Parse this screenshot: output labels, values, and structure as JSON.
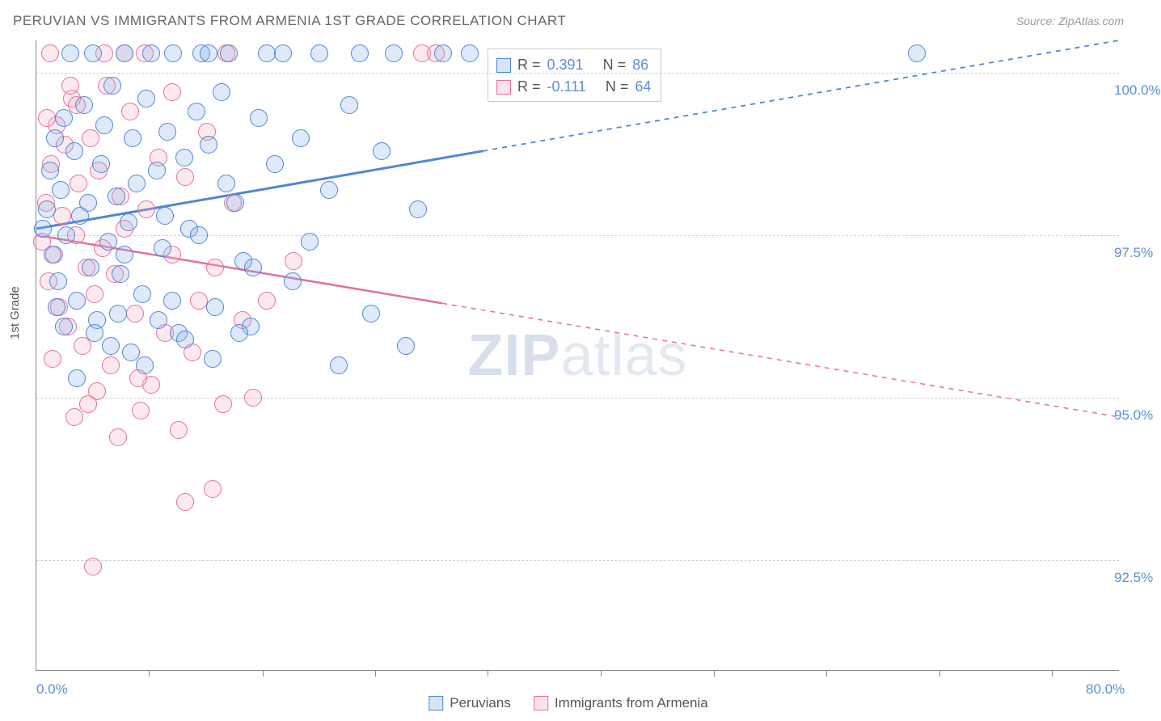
{
  "title": "PERUVIAN VS IMMIGRANTS FROM ARMENIA 1ST GRADE CORRELATION CHART",
  "source_prefix": "Source: ",
  "source": "ZipAtlas.com",
  "ylabel": "1st Grade",
  "watermark_bold": "ZIP",
  "watermark_light": "atlas",
  "chart": {
    "type": "scatter",
    "background_color": "#ffffff",
    "grid_color": "#d0d0d0",
    "axis_color": "#888888",
    "text_color": "#666666",
    "value_color": "#5b8fd6",
    "xlim": [
      0,
      80
    ],
    "ylim": [
      90.8,
      100.5
    ],
    "x_ticks_label": [
      {
        "v": 0,
        "t": "0.0%"
      },
      {
        "v": 80,
        "t": "80.0%"
      }
    ],
    "x_ticks_minor": [
      8.3,
      16.7,
      25,
      33.3,
      41.7,
      50,
      58.3,
      66.7,
      75
    ],
    "y_ticks": [
      {
        "v": 92.5,
        "t": "92.5%"
      },
      {
        "v": 95.0,
        "t": "95.0%"
      },
      {
        "v": 97.5,
        "t": "97.5%"
      },
      {
        "v": 100.0,
        "t": "100.0%"
      }
    ],
    "point_radius": 11,
    "point_stroke_width": 1.5,
    "point_fill_opacity": 0.28
  },
  "series": [
    {
      "key": "peruvians",
      "label": "Peruvians",
      "color_stroke": "#4f86d6",
      "color_fill": "#87b1e8",
      "stats": {
        "R_label": "R =",
        "R": "0.391",
        "N_label": "N =",
        "N": "86"
      },
      "trend": {
        "x1": 0,
        "y1": 97.6,
        "x2": 80,
        "y2": 100.5,
        "solid_until_x": 33,
        "width": 3
      },
      "points": [
        [
          0.5,
          97.6
        ],
        [
          0.8,
          97.9
        ],
        [
          1.0,
          98.5
        ],
        [
          1.2,
          97.2
        ],
        [
          1.4,
          99.0
        ],
        [
          1.6,
          96.8
        ],
        [
          1.8,
          98.2
        ],
        [
          2.0,
          99.3
        ],
        [
          2.2,
          97.5
        ],
        [
          2.5,
          100.3
        ],
        [
          2.8,
          98.8
        ],
        [
          3.0,
          96.5
        ],
        [
          3.2,
          97.8
        ],
        [
          3.5,
          99.5
        ],
        [
          3.8,
          98.0
        ],
        [
          4.0,
          97.0
        ],
        [
          4.2,
          100.3
        ],
        [
          4.5,
          96.2
        ],
        [
          4.8,
          98.6
        ],
        [
          5.0,
          99.2
        ],
        [
          5.3,
          97.4
        ],
        [
          5.6,
          99.8
        ],
        [
          5.9,
          98.1
        ],
        [
          6.2,
          96.9
        ],
        [
          6.5,
          100.3
        ],
        [
          6.8,
          97.7
        ],
        [
          7.1,
          99.0
        ],
        [
          7.4,
          98.3
        ],
        [
          7.8,
          96.6
        ],
        [
          8.1,
          99.6
        ],
        [
          8.5,
          100.3
        ],
        [
          8.9,
          98.5
        ],
        [
          9.3,
          97.3
        ],
        [
          9.7,
          99.1
        ],
        [
          10.1,
          100.3
        ],
        [
          10.5,
          96.0
        ],
        [
          10.9,
          98.7
        ],
        [
          11.3,
          97.6
        ],
        [
          11.8,
          99.4
        ],
        [
          12.2,
          100.3
        ],
        [
          12.7,
          98.9
        ],
        [
          12.7,
          100.3
        ],
        [
          13.2,
          96.4
        ],
        [
          13.7,
          99.7
        ],
        [
          14.2,
          100.3
        ],
        [
          14.7,
          98.0
        ],
        [
          15.3,
          97.1
        ],
        [
          15.8,
          96.1
        ],
        [
          16.4,
          99.3
        ],
        [
          17.0,
          100.3
        ],
        [
          17.6,
          98.6
        ],
        [
          18.2,
          100.3
        ],
        [
          18.9,
          96.8
        ],
        [
          19.5,
          99.0
        ],
        [
          20.2,
          97.4
        ],
        [
          20.9,
          100.3
        ],
        [
          21.6,
          98.2
        ],
        [
          22.3,
          95.5
        ],
        [
          23.1,
          99.5
        ],
        [
          23.9,
          100.3
        ],
        [
          24.7,
          96.3
        ],
        [
          25.5,
          98.8
        ],
        [
          26.4,
          100.3
        ],
        [
          27.3,
          95.8
        ],
        [
          28.2,
          97.9
        ],
        [
          30.0,
          100.3
        ],
        [
          32.0,
          100.3
        ],
        [
          65.0,
          100.3
        ],
        [
          3.0,
          95.3
        ],
        [
          5.5,
          95.8
        ],
        [
          8.0,
          95.5
        ],
        [
          4.3,
          96.0
        ],
        [
          6.0,
          96.3
        ],
        [
          9.0,
          96.2
        ],
        [
          11.0,
          95.9
        ],
        [
          2.0,
          96.1
        ],
        [
          7.0,
          95.7
        ],
        [
          10.0,
          96.5
        ],
        [
          13.0,
          95.6
        ],
        [
          15.0,
          96.0
        ],
        [
          1.5,
          96.4
        ],
        [
          6.5,
          97.2
        ],
        [
          9.5,
          97.8
        ],
        [
          12.0,
          97.5
        ],
        [
          14.0,
          98.3
        ],
        [
          16.0,
          97.0
        ]
      ]
    },
    {
      "key": "armenia",
      "label": "Immigrants from Armenia",
      "color_stroke": "#e66f9a",
      "color_fill": "#f5b0c7",
      "stats": {
        "R_label": "R =",
        "R": "-0.111",
        "N_label": "N =",
        "N": "64"
      },
      "trend": {
        "x1": 0,
        "y1": 97.5,
        "x2": 80,
        "y2": 94.7,
        "solid_until_x": 30,
        "width": 2.5
      },
      "points": [
        [
          0.4,
          97.4
        ],
        [
          0.7,
          98.0
        ],
        [
          0.9,
          96.8
        ],
        [
          1.1,
          98.6
        ],
        [
          1.3,
          97.2
        ],
        [
          1.5,
          99.2
        ],
        [
          1.7,
          96.4
        ],
        [
          1.9,
          97.8
        ],
        [
          2.1,
          98.9
        ],
        [
          2.3,
          96.1
        ],
        [
          2.6,
          99.6
        ],
        [
          2.9,
          97.5
        ],
        [
          3.1,
          98.3
        ],
        [
          3.4,
          95.8
        ],
        [
          3.7,
          97.0
        ],
        [
          4.0,
          99.0
        ],
        [
          4.3,
          96.6
        ],
        [
          4.6,
          98.5
        ],
        [
          4.9,
          97.3
        ],
        [
          5.2,
          99.8
        ],
        [
          5.5,
          95.5
        ],
        [
          5.8,
          96.9
        ],
        [
          6.2,
          98.1
        ],
        [
          6.5,
          97.6
        ],
        [
          6.9,
          99.4
        ],
        [
          7.3,
          96.3
        ],
        [
          7.7,
          94.8
        ],
        [
          8.1,
          97.9
        ],
        [
          8.5,
          95.2
        ],
        [
          9.0,
          98.7
        ],
        [
          9.5,
          96.0
        ],
        [
          10.0,
          97.2
        ],
        [
          10.5,
          94.5
        ],
        [
          11.0,
          98.4
        ],
        [
          11.5,
          95.7
        ],
        [
          12.0,
          96.5
        ],
        [
          12.6,
          99.1
        ],
        [
          13.2,
          97.0
        ],
        [
          13.8,
          94.9
        ],
        [
          14.5,
          98.0
        ],
        [
          15.2,
          96.2
        ],
        [
          16.0,
          95.0
        ],
        [
          3.0,
          99.5
        ],
        [
          5.0,
          100.3
        ],
        [
          1.0,
          100.3
        ],
        [
          2.5,
          99.8
        ],
        [
          0.8,
          99.3
        ],
        [
          1.2,
          95.6
        ],
        [
          2.8,
          94.7
        ],
        [
          4.5,
          95.1
        ],
        [
          6.0,
          94.4
        ],
        [
          7.5,
          95.3
        ],
        [
          3.8,
          94.9
        ],
        [
          4.2,
          92.4
        ],
        [
          11.0,
          93.4
        ],
        [
          13.0,
          93.6
        ],
        [
          19.0,
          97.1
        ],
        [
          17.0,
          96.5
        ],
        [
          8.0,
          100.3
        ],
        [
          10.0,
          99.7
        ],
        [
          14.0,
          100.3
        ],
        [
          6.5,
          100.3
        ],
        [
          28.5,
          100.3
        ],
        [
          29.5,
          100.3
        ]
      ]
    }
  ]
}
